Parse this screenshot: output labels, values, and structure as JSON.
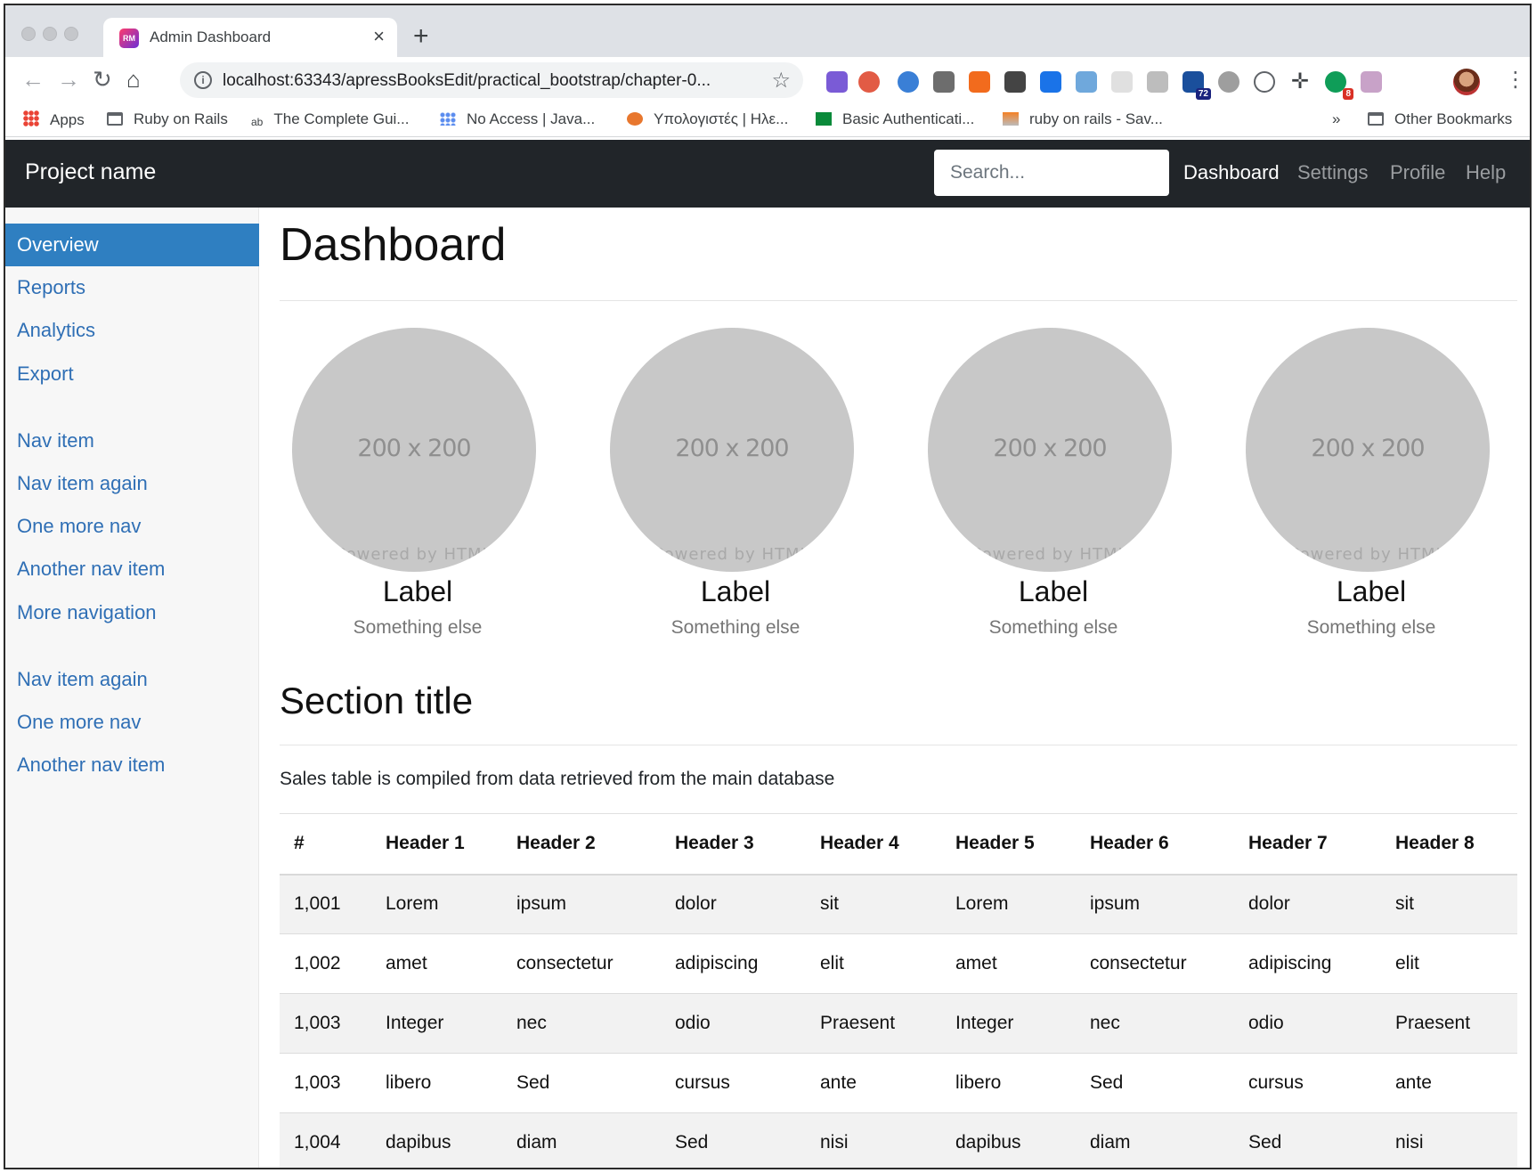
{
  "browser": {
    "tab": {
      "title": "Admin Dashboard",
      "favicon_text": "RM"
    },
    "address_url": "localhost:63343/apressBooksEdit/practical_bootstrap/chapter-0...",
    "bookmarks": [
      {
        "label": "Apps",
        "icon": "apps-icon"
      },
      {
        "label": "Ruby on Rails",
        "icon": "folder-icon"
      },
      {
        "label": "The Complete Gui...",
        "icon": "site-icon"
      },
      {
        "label": "No Access | Java...",
        "icon": "site-icon"
      },
      {
        "label": "Υπολογιστές | Ηλε...",
        "icon": "site-icon"
      },
      {
        "label": "Basic Authenticati...",
        "icon": "site-icon"
      },
      {
        "label": "ruby on rails - Sav...",
        "icon": "stackoverflow-icon"
      }
    ],
    "bookmarks_more": "»",
    "other_bookmarks": "Other Bookmarks",
    "extension_badges": [
      "72",
      "8"
    ]
  },
  "navbar": {
    "brand": "Project name",
    "search_placeholder": "Search...",
    "links": [
      "Dashboard",
      "Settings",
      "Profile",
      "Help"
    ]
  },
  "sidebar": {
    "groups": [
      [
        "Overview",
        "Reports",
        "Analytics",
        "Export"
      ],
      [
        "Nav item",
        "Nav item again",
        "One more nav",
        "Another nav item",
        "More navigation"
      ],
      [
        "Nav item again",
        "One more nav",
        "Another nav item"
      ]
    ]
  },
  "main": {
    "title": "Dashboard",
    "placeholders": [
      {
        "dims": "200 x 200",
        "overlay": "Powered by HTML",
        "label": "Label",
        "sub": "Something else"
      },
      {
        "dims": "200 x 200",
        "overlay": "Powered by HTML",
        "label": "Label",
        "sub": "Something else"
      },
      {
        "dims": "200 x 200",
        "overlay": "Powered by HTML",
        "label": "Label",
        "sub": "Something else"
      },
      {
        "dims": "200 x 200",
        "overlay": "Powered by HTML",
        "label": "Label",
        "sub": "Something else"
      }
    ],
    "section_title": "Section title",
    "section_lead": "Sales table is compiled from data retrieved from the main database",
    "table": {
      "headers": [
        "#",
        "Header 1",
        "Header 2",
        "Header 3",
        "Header 4",
        "Header 5",
        "Header 6",
        "Header 7",
        "Header 8"
      ],
      "rows": [
        [
          "1,001",
          "Lorem",
          "ipsum",
          "dolor",
          "sit",
          "Lorem",
          "ipsum",
          "dolor",
          "sit"
        ],
        [
          "1,002",
          "amet",
          "consectetur",
          "adipiscing",
          "elit",
          "amet",
          "consectetur",
          "adipiscing",
          "elit"
        ],
        [
          "1,003",
          "Integer",
          "nec",
          "odio",
          "Praesent",
          "Integer",
          "nec",
          "odio",
          "Praesent"
        ],
        [
          "1,003",
          "libero",
          "Sed",
          "cursus",
          "ante",
          "libero",
          "Sed",
          "cursus",
          "ante"
        ],
        [
          "1,004",
          "dapibus",
          "diam",
          "Sed",
          "nisi",
          "dapibus",
          "diam",
          "Sed",
          "nisi"
        ]
      ]
    }
  },
  "colors": {
    "navbar_bg": "#212529",
    "sidebar_active": "#2f7fc1",
    "link": "#2f6fb5"
  }
}
